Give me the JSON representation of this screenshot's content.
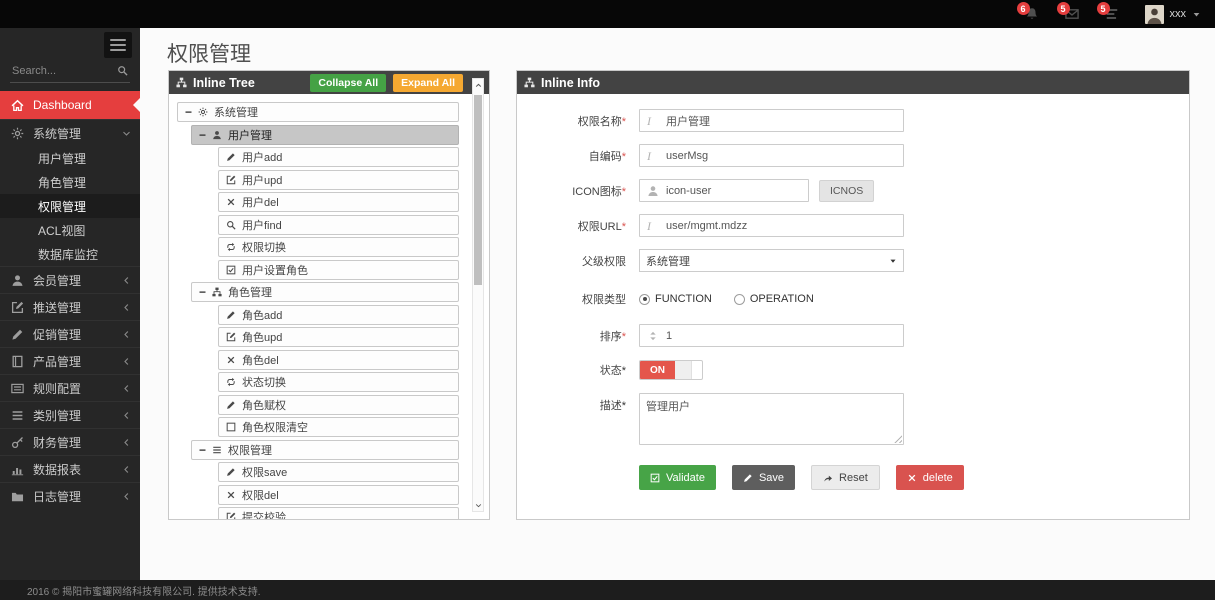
{
  "topbar": {
    "notifications": [
      {
        "key": "notifications",
        "icon": "bell-icon",
        "count": "6"
      },
      {
        "key": "messages",
        "icon": "envelope-icon",
        "count": "5"
      },
      {
        "key": "tasks",
        "icon": "tasks-icon",
        "count": "5"
      }
    ],
    "user": {
      "name": "xxx",
      "avatar_icon": "avatar-photo",
      "caret_icon": "caret-down-icon"
    }
  },
  "sidebar": {
    "search_placeholder": "Search...",
    "menu": [
      {
        "key": "dashboard",
        "icon": "home-icon",
        "label": "Dashboard",
        "active": true
      },
      {
        "key": "system-mgmt",
        "icon": "gears-icon",
        "label": "系统管理",
        "chevron": "chevron-down-icon",
        "children": [
          {
            "key": "user-mgmt",
            "label": "用户管理"
          },
          {
            "key": "role-mgmt",
            "label": "角色管理"
          },
          {
            "key": "perm-mgmt",
            "label": "权限管理",
            "active": true
          },
          {
            "key": "acl-view",
            "label": "ACL视图"
          },
          {
            "key": "db-monitor",
            "label": "数据库监控"
          }
        ]
      },
      {
        "key": "member-mgmt",
        "icon": "user-icon",
        "label": "会员管理",
        "chevron": "chevron-left-icon"
      },
      {
        "key": "push-mgmt",
        "icon": "edit-icon",
        "label": "推送管理",
        "chevron": "chevron-left-icon"
      },
      {
        "key": "promo-mgmt",
        "icon": "pencil-icon",
        "label": "促销管理",
        "chevron": "chevron-left-icon"
      },
      {
        "key": "product-mgmt",
        "icon": "book-icon",
        "label": "产品管理",
        "chevron": "chevron-left-icon"
      },
      {
        "key": "rule-config",
        "icon": "newspaper-icon",
        "label": "规则配置",
        "chevron": "chevron-left-icon"
      },
      {
        "key": "category-mgmt",
        "icon": "list-icon",
        "label": "类别管理",
        "chevron": "chevron-left-icon"
      },
      {
        "key": "finance-mgmt",
        "icon": "key-icon",
        "label": "财务管理",
        "chevron": "chevron-left-icon"
      },
      {
        "key": "data-report",
        "icon": "chart-icon",
        "label": "数据报表",
        "chevron": "chevron-left-icon"
      },
      {
        "key": "log-mgmt",
        "icon": "folder-icon",
        "label": "日志管理",
        "chevron": "chevron-left-icon"
      }
    ]
  },
  "page": {
    "title": "权限管理"
  },
  "tree_panel": {
    "title": "Inline Tree",
    "title_icon": "sitemap-icon",
    "collapse_all_label": "Collapse All",
    "expand_all_label": "Expand All",
    "refresh_icon": "refresh-icon",
    "rows": [
      {
        "level": 0,
        "collapse": true,
        "icon": "gears-icon",
        "label": "系统管理"
      },
      {
        "level": 1,
        "collapse": true,
        "icon": "user-icon",
        "label": "用户管理",
        "selected": true
      },
      {
        "level": 2,
        "icon": "pencil-icon",
        "label": "用户add"
      },
      {
        "level": 2,
        "icon": "edit-icon",
        "label": "用户upd"
      },
      {
        "level": 2,
        "icon": "x-icon",
        "label": "用户del"
      },
      {
        "level": 2,
        "icon": "search-icon",
        "label": "用户find"
      },
      {
        "level": 2,
        "icon": "repeat-icon",
        "label": "权限切换"
      },
      {
        "level": 2,
        "icon": "check-square-icon",
        "label": "用户设置角色"
      },
      {
        "level": 1,
        "collapse": true,
        "icon": "sitemap-icon",
        "label": "角色管理"
      },
      {
        "level": 2,
        "icon": "pencil-icon",
        "label": "角色add"
      },
      {
        "level": 2,
        "icon": "edit-icon",
        "label": "角色upd"
      },
      {
        "level": 2,
        "icon": "x-icon",
        "label": "角色del"
      },
      {
        "level": 2,
        "icon": "repeat-icon",
        "label": "状态切换"
      },
      {
        "level": 2,
        "icon": "pencil-icon",
        "label": "角色赋权"
      },
      {
        "level": 2,
        "icon": "square-icon",
        "label": "角色权限清空"
      },
      {
        "level": 1,
        "collapse": true,
        "icon": "list-icon",
        "label": "权限管理"
      },
      {
        "level": 2,
        "icon": "pencil-icon",
        "label": "权限save"
      },
      {
        "level": 2,
        "icon": "x-icon",
        "label": "权限del"
      },
      {
        "level": 2,
        "icon": "edit-icon",
        "label": "提交校验"
      }
    ]
  },
  "info_panel": {
    "title": "Inline Info",
    "title_icon": "sitemap-icon",
    "fields": {
      "name": {
        "label": "权限名称",
        "star": "red",
        "value": "用户管理",
        "icon": "text-cursor-icon"
      },
      "code": {
        "label": "自编码",
        "star": "red",
        "value": "userMsg",
        "icon": "text-cursor-icon"
      },
      "icon": {
        "label": "ICON图标",
        "star": "red",
        "value": "icon-user",
        "icon": "user-icon",
        "button_label": "ICNOS"
      },
      "url": {
        "label": "权限URL",
        "star": "red",
        "value": "user/mgmt.mdzz",
        "icon": "text-cursor-icon"
      },
      "parent": {
        "label": "父级权限",
        "value": "系统管理"
      },
      "type": {
        "label": "权限类型",
        "options": [
          "FUNCTION",
          "OPERATION"
        ],
        "selected": "FUNCTION"
      },
      "sort": {
        "label": "排序",
        "star": "red",
        "value": "1",
        "icon": "sort-icon"
      },
      "status": {
        "label": "状态",
        "star": "dark",
        "value": "ON"
      },
      "desc": {
        "label": "描述",
        "star": "dark",
        "value": "管理用户"
      }
    },
    "buttons": [
      {
        "key": "validate",
        "label": "Validate",
        "icon": "check-square-icon",
        "style": "success"
      },
      {
        "key": "save",
        "label": "Save",
        "icon": "pencil-icon",
        "style": "dark"
      },
      {
        "key": "reset",
        "label": "Reset",
        "icon": "share-icon",
        "style": "light"
      },
      {
        "key": "delete",
        "label": "delete",
        "icon": "x-icon",
        "style": "danger"
      }
    ]
  },
  "footer": {
    "copyright": "2016 © 揭阳市蜜罐网络科技有限公司. 提供技术支持.",
    "scroll_top_icon": "chevron-up-icon"
  },
  "colors": {
    "accent_red": "#e53e3e",
    "green": "#45a245",
    "orange": "#f5a831",
    "danger": "#d9534f",
    "dark_header": "#434343"
  }
}
